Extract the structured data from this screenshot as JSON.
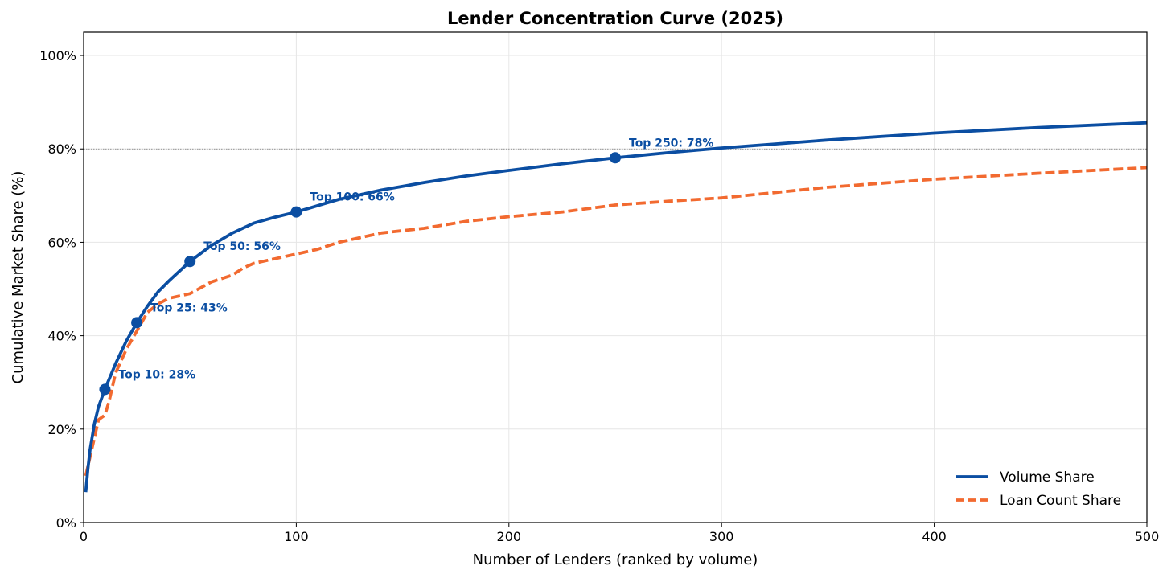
{
  "chart_data": {
    "type": "line",
    "title": "Lender Concentration Curve (2025)",
    "xlabel": "Number of Lenders (ranked by volume)",
    "ylabel": "Cumulative Market Share (%)",
    "xlim": [
      0,
      500
    ],
    "ylim": [
      0,
      105
    ],
    "x_ticks": [
      0,
      100,
      200,
      300,
      400,
      500
    ],
    "x_tick_labels": [
      "0",
      "100",
      "200",
      "300",
      "400",
      "500"
    ],
    "y_ticks": [
      0,
      20,
      40,
      60,
      80,
      100
    ],
    "y_tick_labels": [
      "0%",
      "20%",
      "40%",
      "60%",
      "80%",
      "100%"
    ],
    "grid": true,
    "reference_lines_y": [
      50,
      80
    ],
    "legend_position": "lower-right",
    "series": [
      {
        "name": "Volume Share",
        "color": "#0b4ea2",
        "style": "solid",
        "x": [
          1,
          2,
          3,
          5,
          7,
          10,
          15,
          20,
          25,
          30,
          35,
          40,
          50,
          60,
          70,
          80,
          90,
          100,
          120,
          140,
          160,
          180,
          200,
          225,
          250,
          275,
          300,
          350,
          400,
          450,
          500
        ],
        "y": [
          6.5,
          11.5,
          15.5,
          21,
          24.8,
          28.5,
          34,
          38.8,
          42.8,
          46.3,
          49.4,
          51.7,
          55.9,
          59.3,
          62,
          64.1,
          65.4,
          66.5,
          69.2,
          71.2,
          72.8,
          74.2,
          75.4,
          76.8,
          78.1,
          79.2,
          80.2,
          81.9,
          83.4,
          84.6,
          85.6
        ]
      },
      {
        "name": "Loan Count Share",
        "color": "#f26a30",
        "style": "dashed",
        "x": [
          1,
          3,
          5,
          7,
          10,
          12,
          15,
          20,
          25,
          30,
          35,
          40,
          50,
          60,
          70,
          75,
          80,
          90,
          100,
          110,
          120,
          140,
          160,
          180,
          200,
          225,
          250,
          275,
          300,
          350,
          400,
          450,
          500
        ],
        "y": [
          10,
          14,
          18,
          22,
          23,
          26,
          32,
          37,
          41,
          45,
          46.8,
          48,
          49,
          51.5,
          53,
          54.5,
          55.5,
          56.5,
          57.5,
          58.5,
          60,
          62,
          63,
          64.5,
          65.5,
          66.5,
          68,
          68.8,
          69.5,
          71.8,
          73.5,
          74.8,
          76
        ]
      }
    ],
    "annotations": [
      {
        "x": 10,
        "y": 28.5,
        "label": "Top 10: 28%"
      },
      {
        "x": 25,
        "y": 42.8,
        "label": "Top 25: 43%"
      },
      {
        "x": 50,
        "y": 55.9,
        "label": "Top 50: 56%"
      },
      {
        "x": 100,
        "y": 66.5,
        "label": "Top 100: 66%"
      },
      {
        "x": 250,
        "y": 78.1,
        "label": "Top 250: 78%"
      }
    ]
  }
}
